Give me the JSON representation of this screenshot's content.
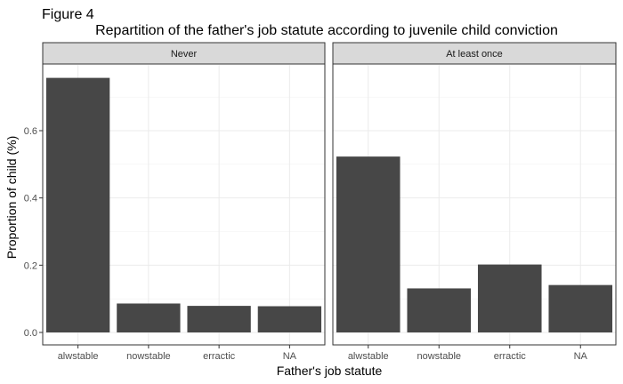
{
  "figure_label": "Figure 4",
  "chart_data": {
    "type": "bar",
    "title": "Repartition of the father's job statute according to juvenile child conviction",
    "xlabel": "Father's job statute",
    "ylabel": "Proportion of child (%)",
    "categories": [
      "alwstable",
      "nowstable",
      "erractic",
      "NA"
    ],
    "ylim": [
      0,
      0.76
    ],
    "yticks": [
      0.0,
      0.2,
      0.4,
      0.6
    ],
    "ytick_labels": [
      "0.0",
      "0.2",
      "0.4",
      "0.6"
    ],
    "grid": true,
    "facets": [
      {
        "label": "Never",
        "values": [
          0.757,
          0.086,
          0.079,
          0.078
        ]
      },
      {
        "label": "At least once",
        "values": [
          0.523,
          0.131,
          0.202,
          0.141
        ]
      }
    ],
    "colors": {
      "bar": "#474747",
      "strip": "#d9d9d9",
      "grid": "#ebebeb",
      "border": "#333333"
    }
  }
}
